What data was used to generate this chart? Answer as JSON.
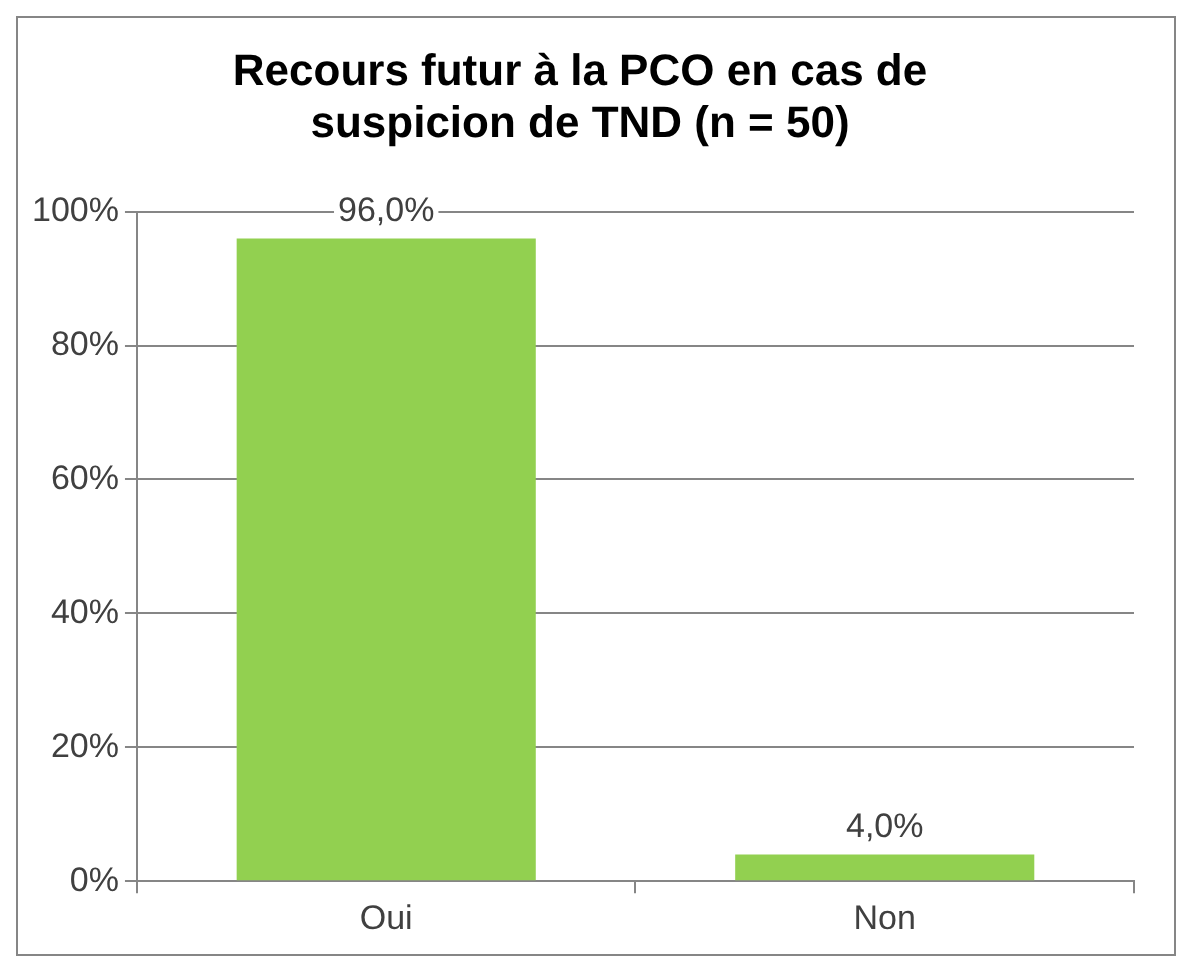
{
  "chart_data": {
    "type": "bar",
    "title": "Recours futur à la PCO en cas de suspicion de TND (n = 50)",
    "categories": [
      "Oui",
      "Non"
    ],
    "values": [
      96,
      4
    ],
    "color": "#92d050",
    "value_labels": [
      "96,0%",
      "4,0%"
    ],
    "ylim": [
      0,
      100
    ],
    "yticks": [
      {
        "value": 0,
        "label": "0%"
      },
      {
        "value": 20,
        "label": "20%"
      },
      {
        "value": 40,
        "label": "40%"
      },
      {
        "value": 60,
        "label": "60%"
      },
      {
        "value": 80,
        "label": "80%"
      },
      {
        "value": 100,
        "label": "100%"
      }
    ],
    "grid": "y",
    "legend": false
  }
}
